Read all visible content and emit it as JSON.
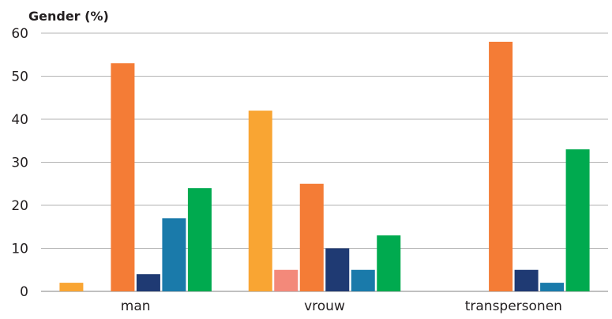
{
  "chart_data": {
    "type": "bar",
    "title": "Gender (%)",
    "xlabel": "",
    "ylabel": "",
    "ylim": [
      0,
      60
    ],
    "yticks": [
      0,
      10,
      20,
      30,
      40,
      50,
      60
    ],
    "grid": true,
    "categories": [
      "man",
      "vrouw",
      "transpersonen"
    ],
    "series": [
      {
        "color": "#f9a533",
        "values": [
          2,
          42,
          0
        ]
      },
      {
        "color": "#f3897a",
        "values": [
          0,
          5,
          0
        ]
      },
      {
        "color": "#f47c36",
        "values": [
          53,
          25,
          58
        ]
      },
      {
        "color": "#1f3a73",
        "values": [
          4,
          10,
          5
        ]
      },
      {
        "color": "#1a7aaa",
        "values": [
          17,
          5,
          2
        ]
      },
      {
        "color": "#00aa4f",
        "values": [
          24,
          13,
          33
        ]
      }
    ]
  }
}
